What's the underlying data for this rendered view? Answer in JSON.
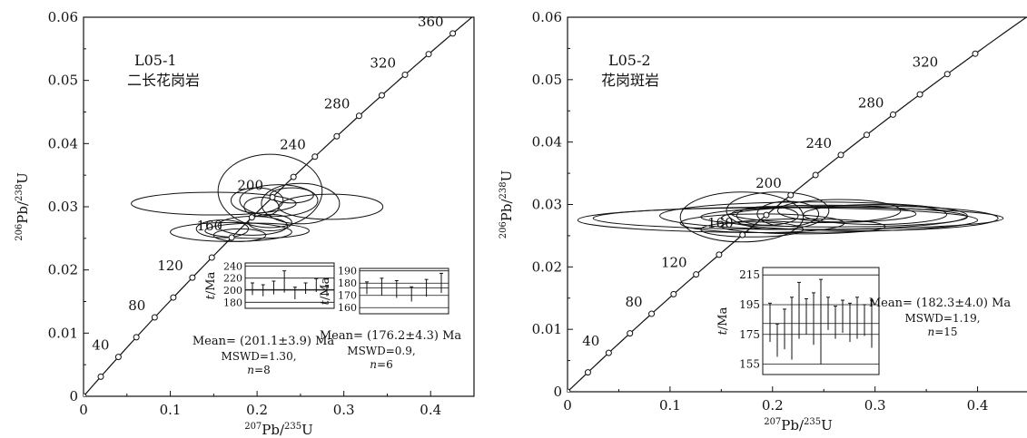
{
  "chart_data": [
    {
      "type": "scatter",
      "sample": "L05-1",
      "rock": "二长花岗岩",
      "xlabel": {
        "sup1": "207",
        "base1": "Pb/",
        "sup2": "235",
        "base2": "U"
      },
      "ylabel": {
        "sup1": "206",
        "base1": "Pb/",
        "sup2": "238",
        "base2": "U"
      },
      "xlim": [
        0,
        0.45
      ],
      "ylim": [
        0,
        0.06
      ],
      "xticks": [
        0,
        0.1,
        0.2,
        0.3,
        0.4
      ],
      "xtick_labels": [
        "0",
        "0.1",
        "0.2",
        "0.3",
        "0.4"
      ],
      "yticks": [
        0,
        0.01,
        0.02,
        0.03,
        0.04,
        0.05,
        0.06
      ],
      "ytick_labels": [
        "0",
        "0.01",
        "0.02",
        "0.03",
        "0.04",
        "0.05",
        "0.06"
      ],
      "concordia_ages_ma": [
        0,
        20,
        40,
        60,
        80,
        100,
        120,
        140,
        160,
        180,
        200,
        220,
        240,
        260,
        280,
        300,
        320,
        340,
        360
      ],
      "concordia_labels": [
        {
          "age": 40,
          "text": "40"
        },
        {
          "age": 80,
          "text": "80"
        },
        {
          "age": 120,
          "text": "120"
        },
        {
          "age": 160,
          "text": "160"
        },
        {
          "age": 200,
          "text": "200"
        },
        {
          "age": 240,
          "text": "240"
        },
        {
          "age": 280,
          "text": "280"
        },
        {
          "age": 320,
          "text": "320"
        },
        {
          "age": 360,
          "text": "360"
        }
      ],
      "ellipses": [
        {
          "x": 0.15,
          "y": 0.0305,
          "rx": 0.095,
          "ry": 0.0018
        },
        {
          "x": 0.215,
          "y": 0.0325,
          "rx": 0.06,
          "ry": 0.0058
        },
        {
          "x": 0.225,
          "y": 0.031,
          "rx": 0.045,
          "ry": 0.0025
        },
        {
          "x": 0.25,
          "y": 0.0305,
          "rx": 0.045,
          "ry": 0.0032
        },
        {
          "x": 0.2,
          "y": 0.031,
          "rx": 0.03,
          "ry": 0.002
        },
        {
          "x": 0.285,
          "y": 0.03,
          "rx": 0.06,
          "ry": 0.002
        },
        {
          "x": 0.24,
          "y": 0.0318,
          "rx": 0.025,
          "ry": 0.0012
        },
        {
          "x": 0.205,
          "y": 0.03,
          "rx": 0.02,
          "ry": 0.0015
        },
        {
          "x": 0.195,
          "y": 0.027,
          "rx": 0.04,
          "ry": 0.0015
        },
        {
          "x": 0.17,
          "y": 0.026,
          "rx": 0.07,
          "ry": 0.0015
        },
        {
          "x": 0.16,
          "y": 0.0265,
          "rx": 0.03,
          "ry": 0.0014
        },
        {
          "x": 0.2,
          "y": 0.0262,
          "rx": 0.06,
          "ry": 0.0012
        },
        {
          "x": 0.215,
          "y": 0.0275,
          "rx": 0.025,
          "ry": 0.0013
        },
        {
          "x": 0.18,
          "y": 0.0255,
          "rx": 0.03,
          "ry": 0.001
        }
      ],
      "insets": [
        {
          "ylabel": "t/Ma",
          "yticks": [
            180,
            200,
            220,
            240
          ],
          "ylim": [
            170,
            245
          ],
          "mean": 201.1,
          "bars": [
            [
              192,
              212
            ],
            [
              190,
              209
            ],
            [
              193,
              215
            ],
            [
              196,
              232
            ],
            [
              185,
              205
            ],
            [
              194,
              212
            ],
            [
              197,
              219
            ],
            [
              190,
              208
            ]
          ],
          "caption_mean": "Mean= (201.1±3.9) Ma",
          "caption_mswd": "MSWD=1.30,",
          "caption_n": "n=8"
        },
        {
          "ylabel": "t/Ma",
          "yticks": [
            160,
            170,
            180,
            190
          ],
          "ylim": [
            155,
            192
          ],
          "mean": 176.2,
          "bars": [
            [
              171,
              181
            ],
            [
              170,
              184
            ],
            [
              168,
              182
            ],
            [
              165,
              177
            ],
            [
              169,
              183
            ],
            [
              172,
              188
            ]
          ],
          "caption_mean": "Mean= (176.2±4.3) Ma",
          "caption_mswd": "MSWD=0.9,",
          "caption_n": "n=6"
        }
      ]
    },
    {
      "type": "scatter",
      "sample": "L05-2",
      "rock": "花岗斑岩",
      "xlabel": {
        "sup1": "207",
        "base1": "Pb/",
        "sup2": "235",
        "base2": "U"
      },
      "ylabel": {
        "sup1": "206",
        "base1": "Pb/",
        "sup2": "238",
        "base2": "U"
      },
      "xlim": [
        0,
        0.45
      ],
      "ylim": [
        0,
        0.06
      ],
      "xticks": [
        0,
        0.1,
        0.2,
        0.3,
        0.4
      ],
      "xtick_labels": [
        "0",
        "0.1",
        "0.2",
        "0.3",
        "0.4"
      ],
      "yticks": [
        0,
        0.01,
        0.02,
        0.03,
        0.04,
        0.05,
        0.06
      ],
      "ytick_labels": [
        "0",
        "0.01",
        "0.02",
        "0.03",
        "0.04",
        "0.05",
        "0.06"
      ],
      "concordia_ages_ma": [
        0,
        20,
        40,
        60,
        80,
        100,
        120,
        140,
        160,
        180,
        200,
        220,
        240,
        260,
        280,
        300,
        320,
        340
      ],
      "concordia_labels": [
        {
          "age": 40,
          "text": "40"
        },
        {
          "age": 80,
          "text": "80"
        },
        {
          "age": 120,
          "text": "120"
        },
        {
          "age": 160,
          "text": "160"
        },
        {
          "age": 200,
          "text": "200"
        },
        {
          "age": 240,
          "text": "240"
        },
        {
          "age": 280,
          "text": "280"
        },
        {
          "age": 320,
          "text": "320"
        }
      ],
      "ellipses": [
        {
          "x": 0.205,
          "y": 0.0275,
          "rx": 0.195,
          "ry": 0.002
        },
        {
          "x": 0.225,
          "y": 0.0278,
          "rx": 0.2,
          "ry": 0.0018
        },
        {
          "x": 0.24,
          "y": 0.0282,
          "rx": 0.15,
          "ry": 0.0022
        },
        {
          "x": 0.26,
          "y": 0.028,
          "rx": 0.13,
          "ry": 0.0016
        },
        {
          "x": 0.285,
          "y": 0.0278,
          "rx": 0.135,
          "ry": 0.002
        },
        {
          "x": 0.25,
          "y": 0.0285,
          "rx": 0.09,
          "ry": 0.0014
        },
        {
          "x": 0.19,
          "y": 0.027,
          "rx": 0.08,
          "ry": 0.0015
        },
        {
          "x": 0.17,
          "y": 0.028,
          "rx": 0.06,
          "ry": 0.004
        },
        {
          "x": 0.205,
          "y": 0.029,
          "rx": 0.05,
          "ry": 0.003
        },
        {
          "x": 0.215,
          "y": 0.0285,
          "rx": 0.03,
          "ry": 0.002
        },
        {
          "x": 0.265,
          "y": 0.029,
          "rx": 0.06,
          "ry": 0.0018
        },
        {
          "x": 0.23,
          "y": 0.0265,
          "rx": 0.08,
          "ry": 0.0012
        },
        {
          "x": 0.18,
          "y": 0.026,
          "rx": 0.05,
          "ry": 0.0012
        },
        {
          "x": 0.3,
          "y": 0.0284,
          "rx": 0.07,
          "ry": 0.0016
        },
        {
          "x": 0.195,
          "y": 0.0282,
          "rx": 0.03,
          "ry": 0.0015
        }
      ],
      "insets": [
        {
          "ylabel": "t/Ma",
          "yticks": [
            155,
            175,
            195,
            215
          ],
          "ylim": [
            148,
            220
          ],
          "mean": 182.3,
          "bars": [
            [
              170,
              196
            ],
            [
              160,
              182
            ],
            [
              165,
              192
            ],
            [
              158,
              200
            ],
            [
              172,
              210
            ],
            [
              175,
              199
            ],
            [
              168,
              203
            ],
            [
              155,
              212
            ],
            [
              178,
              200
            ],
            [
              172,
              194
            ],
            [
              176,
              198
            ],
            [
              170,
              196
            ],
            [
              172,
              200
            ],
            [
              174,
              195
            ],
            [
              166,
              198
            ]
          ],
          "caption_mean": "Mean= (182.3±4.0) Ma",
          "caption_mswd": "MSWD=1.19,",
          "caption_n": "n=15"
        }
      ]
    }
  ]
}
